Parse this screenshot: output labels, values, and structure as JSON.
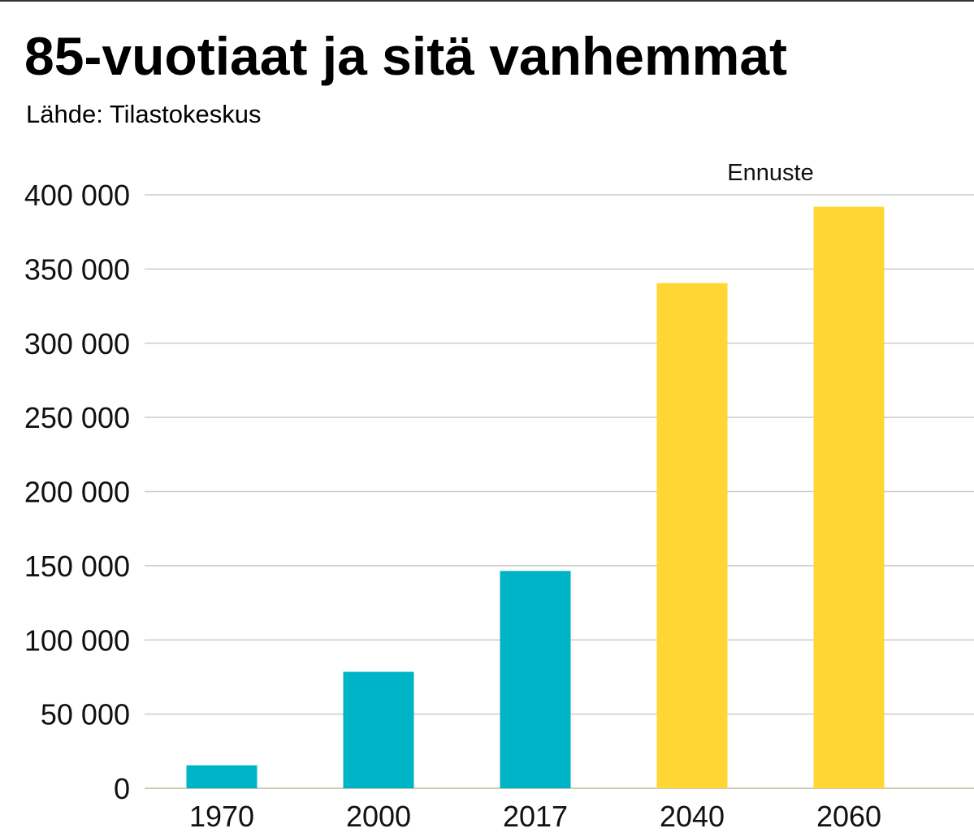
{
  "header": {
    "title": "85-vuotiaat ja sitä vanhemmat",
    "source": "Lähde: Tilastokeskus"
  },
  "colors": {
    "historical": "#00B4C8",
    "forecast": "#FFD633",
    "grid": "#CCCCCC",
    "axis": "#BDBA9A"
  },
  "chart_data": {
    "type": "bar",
    "title": "85-vuotiaat ja sitä vanhemmat",
    "subtitle": "Lähde: Tilastokeskus",
    "xlabel": "",
    "ylabel": "",
    "categories": [
      "1970",
      "2000",
      "2017",
      "2040",
      "2060"
    ],
    "values": [
      15500,
      78500,
      146500,
      340500,
      392000
    ],
    "forecast": [
      false,
      false,
      false,
      true,
      true
    ],
    "ylim": [
      0,
      400000
    ],
    "yticks": [
      0,
      50000,
      100000,
      150000,
      200000,
      250000,
      300000,
      350000,
      400000
    ],
    "ytick_labels": [
      "0",
      "50 000",
      "100 000",
      "150 000",
      "200 000",
      "250 000",
      "300 000",
      "350 000",
      "400 000"
    ],
    "grid": true,
    "annotations": [
      {
        "text": "Ennuste"
      }
    ]
  }
}
